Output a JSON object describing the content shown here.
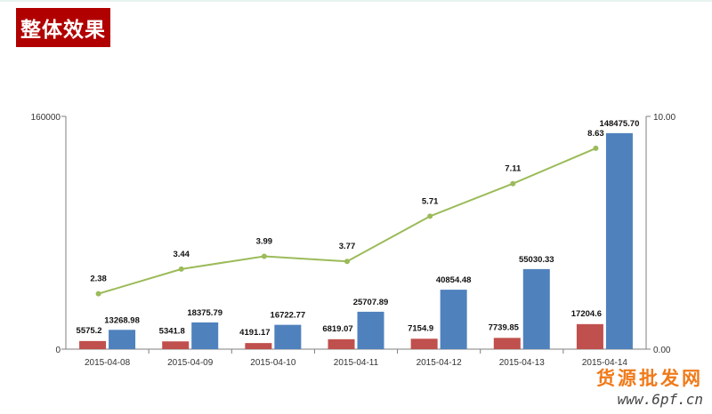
{
  "header": {
    "title": "整体效果"
  },
  "colors": {
    "series1": "#c0504d",
    "series2": "#4f81bd",
    "line": "#9bbb59",
    "title_bg": "#b10000",
    "watermark": "#f07a1a"
  },
  "chart_data": {
    "type": "bar",
    "categories": [
      "2015-04-08",
      "2015-04-09",
      "2015-04-10",
      "2015-04-11",
      "2015-04-12",
      "2015-04-13",
      "2015-04-14"
    ],
    "series": [
      {
        "values": [
          5575.2,
          5341.8,
          4191.17,
          6819.07,
          7154.9,
          7739.85,
          17204.6
        ],
        "labels": [
          "5575.2",
          "5341.8",
          "4191.17",
          "6819.07",
          "7154.9",
          "7739.85",
          "17204.6"
        ]
      },
      {
        "values": [
          13268.98,
          18375.79,
          16722.77,
          25707.89,
          40854.48,
          55030.33,
          148475.7
        ],
        "labels": [
          "13268.98",
          "18375.79",
          "16722.77",
          "25707.89",
          "40854.48",
          "55030.33",
          "148475.70"
        ]
      },
      {
        "type": "line",
        "axis": "right",
        "values": [
          2.38,
          3.44,
          3.99,
          3.77,
          5.71,
          7.11,
          8.63
        ],
        "labels": [
          "2.38",
          "3.44",
          "3.99",
          "3.77",
          "5.71",
          "7.11",
          "8.63"
        ]
      }
    ],
    "left_axis": {
      "range": [
        0,
        160000
      ],
      "ticks": [
        "0",
        "160000"
      ]
    },
    "right_axis": {
      "range": [
        0,
        10
      ],
      "ticks": [
        "0.00",
        "10.00"
      ]
    },
    "grid": false,
    "legend": "none"
  },
  "watermark": {
    "text": "货源批发网",
    "url": "www.6pf.cn"
  }
}
